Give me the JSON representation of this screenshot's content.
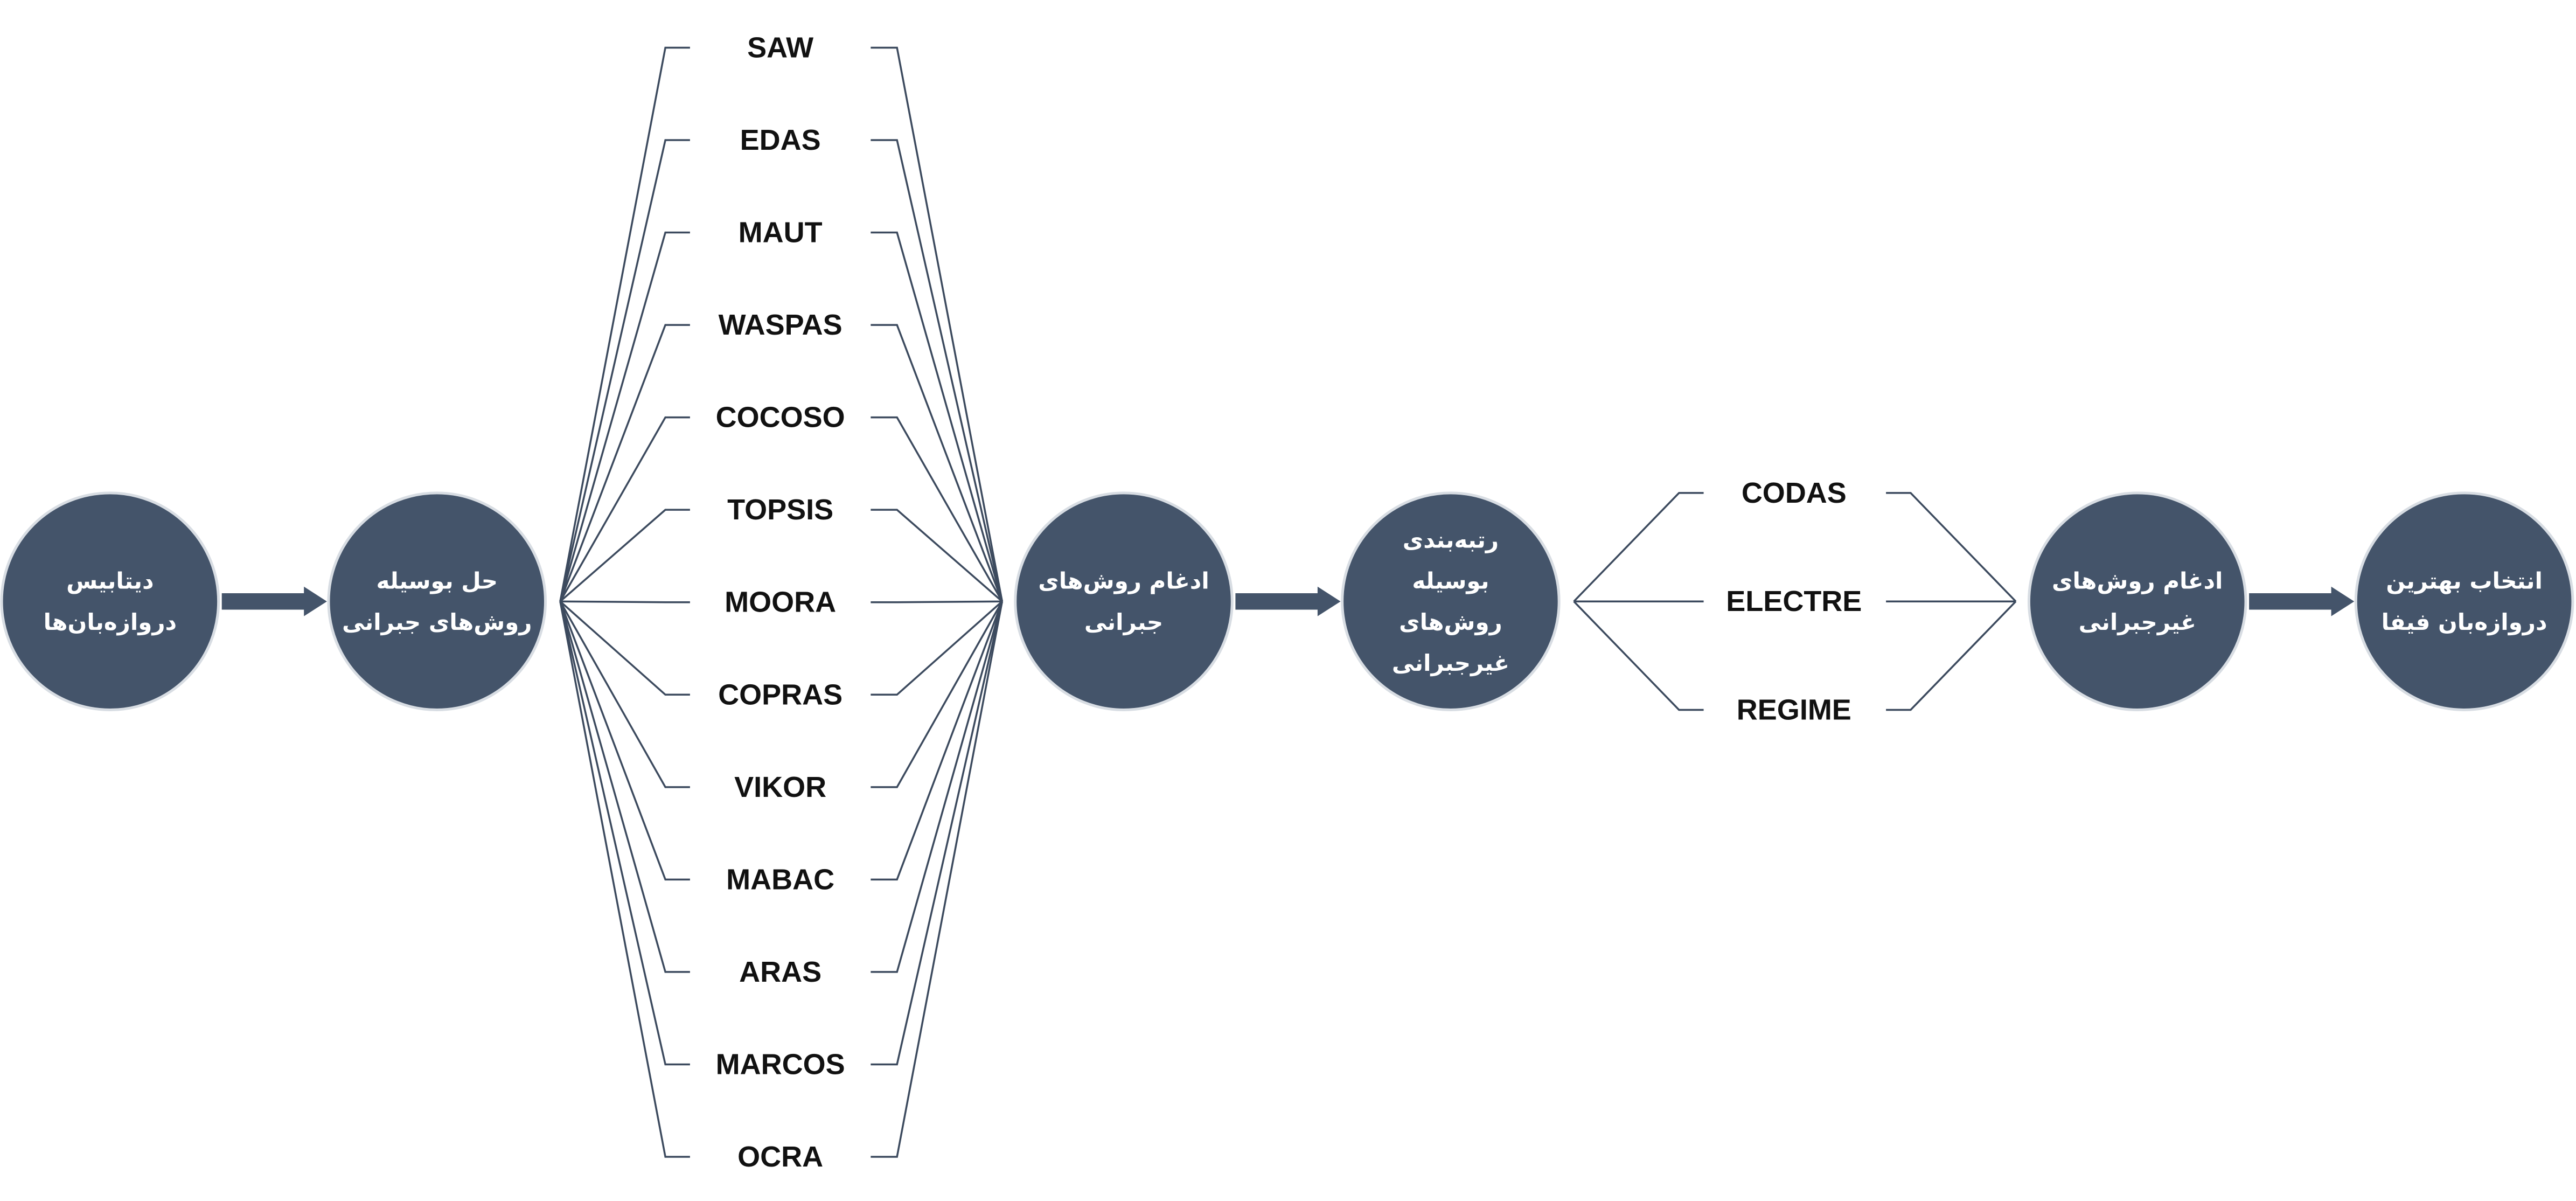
{
  "colors": {
    "node_fill": "#44546a",
    "node_text": "#ffffff",
    "connector": "#3c4a5e",
    "method_text": "#111111",
    "background": "#ffffff"
  },
  "stages": [
    {
      "id": "database",
      "lines": [
        "دیتابیس",
        "دروازه‌بان‌ها"
      ]
    },
    {
      "id": "compensatory-solve",
      "lines": [
        "حل بوسیله",
        "روش‌های جبرانی"
      ]
    },
    {
      "id": "compensatory-merge",
      "lines": [
        "ادغام روش‌های",
        "جبرانی"
      ]
    },
    {
      "id": "noncompensatory-rank",
      "lines": [
        "رتبه‌بندی",
        "بوسیله",
        "روش‌های",
        "غیرجبرانی"
      ]
    },
    {
      "id": "noncompensatory-merge",
      "lines": [
        "ادغام روش‌های",
        "غیرجبرانی"
      ]
    },
    {
      "id": "best-selection",
      "lines": [
        "انتخاب بهترین",
        "دروازه‌بان فیفا"
      ]
    }
  ],
  "compensatory_methods": [
    "SAW",
    "EDAS",
    "MAUT",
    "WASPAS",
    "COCOSO",
    "TOPSIS",
    "MOORA",
    "COPRAS",
    "VIKOR",
    "MABAC",
    "ARAS",
    "MARCOS",
    "OCRA"
  ],
  "noncompensatory_methods": [
    "CODAS",
    "ELECTRE",
    "REGIME"
  ],
  "icons": [
    "right-arrow-icon"
  ]
}
